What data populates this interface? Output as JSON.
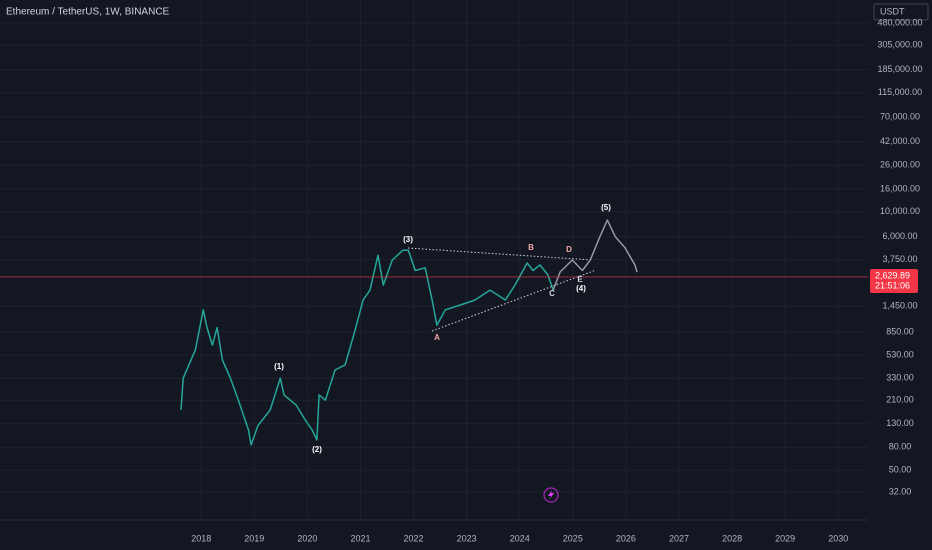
{
  "header": {
    "symbol": "Ethereum / TetherUS, 1W, BINANCE",
    "currency": "USDT"
  },
  "chart_data": {
    "type": "line",
    "log_scale": true,
    "grid": true,
    "xlim": [
      2014.21,
      2030.56
    ],
    "xticks": [
      2018,
      2019,
      2020,
      2021,
      2022,
      2023,
      2024,
      2025,
      2026,
      2027,
      2028,
      2029,
      2030
    ],
    "ylim": [
      18,
      770000
    ],
    "yticks": [
      {
        "value": 32,
        "label": "32.00"
      },
      {
        "value": 50,
        "label": "50.00"
      },
      {
        "value": 80,
        "label": "80.00"
      },
      {
        "value": 130,
        "label": "130.00"
      },
      {
        "value": 210,
        "label": "210.00"
      },
      {
        "value": 330,
        "label": "330.00"
      },
      {
        "value": 530,
        "label": "530.00"
      },
      {
        "value": 850,
        "label": "850.00"
      },
      {
        "value": 1450,
        "label": "1,450.00"
      },
      {
        "value": 3750,
        "label": "3,750.00"
      },
      {
        "value": 6000,
        "label": "6,000.00"
      },
      {
        "value": 10000,
        "label": "10,000.00"
      },
      {
        "value": 16000,
        "label": "16,000.00"
      },
      {
        "value": 26000,
        "label": "26,000.00"
      },
      {
        "value": 42000,
        "label": "42,000.00"
      },
      {
        "value": 70000,
        "label": "70,000.00"
      },
      {
        "value": 115000,
        "label": "115,000.00"
      },
      {
        "value": 185000,
        "label": "185,000.00"
      },
      {
        "value": 305000,
        "label": "305,000.00"
      },
      {
        "value": 480000,
        "label": "480,000.00"
      }
    ],
    "series": [
      {
        "color": "#26a69a",
        "x": [
          2017.62,
          2017.66,
          2017.89,
          2018.04,
          2018.11,
          2018.21,
          2018.3,
          2018.4,
          2018.55,
          2018.7,
          2018.89,
          2018.94,
          2019.07,
          2019.3,
          2019.49,
          2019.56,
          2019.79,
          2019.96,
          2020.09,
          2020.18,
          2020.22,
          2020.34,
          2020.52,
          2020.71,
          2020.9,
          2021.05,
          2021.18,
          2021.33,
          2021.43,
          2021.6,
          2021.8,
          2021.9,
          2022.03,
          2022.22,
          2022.35,
          2022.44,
          2022.6,
          2022.88,
          2023.16,
          2023.44,
          2023.73,
          2023.91,
          2024.14,
          2024.25,
          2024.38,
          2024.53,
          2024.63
        ],
        "values": [
          172,
          330,
          590,
          1340,
          930,
          650,
          930,
          480,
          330,
          210,
          114,
          84,
          125,
          172,
          330,
          234,
          190,
          140,
          114,
          93,
          234,
          210,
          390,
          433,
          890,
          1640,
          2010,
          4120,
          2230,
          3720,
          4550,
          4550,
          3000,
          3170,
          1640,
          980,
          1340,
          1480,
          1640,
          2010,
          1640,
          2230,
          3500,
          3000,
          3370,
          2740,
          2010
        ]
      },
      {
        "color": "#9598a1",
        "x": [
          2024.63,
          2024.76,
          2024.99,
          2025.18,
          2025.33,
          2025.51,
          2025.65,
          2025.8,
          2025.98,
          2026.17,
          2026.21
        ],
        "values": [
          2010,
          2910,
          3720,
          3000,
          3720,
          6000,
          8450,
          6000,
          4800,
          3370,
          2900
        ]
      }
    ],
    "last_price": {
      "value": 2629.89,
      "label": "2,629.89"
    },
    "countdown": "21:51:06",
    "annotations": [
      "(1)",
      "(2)",
      "(3)",
      "(4)",
      "(5)",
      "A",
      "B",
      "C",
      "D",
      "E"
    ]
  }
}
